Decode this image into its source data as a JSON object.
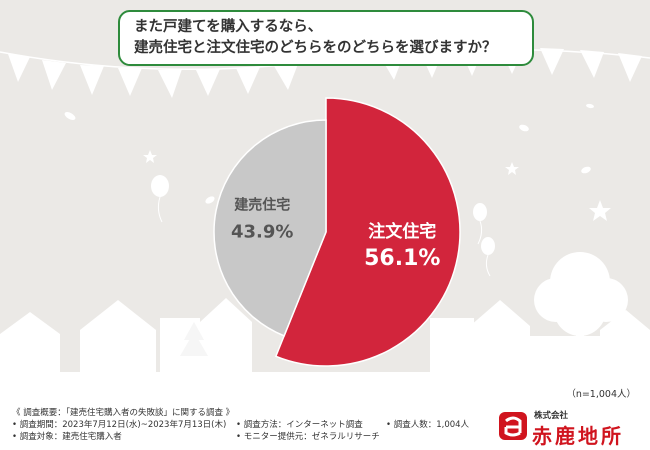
{
  "title": {
    "line1": "また戸建てを購入するなら、",
    "line2": "建売住宅と注文住宅のどちらをのどちらを選びますか？"
  },
  "chart_data": {
    "type": "pie",
    "title": "また戸建てを購入するなら、建売住宅と注文住宅のどちらをのどちらを選びますか？",
    "slices": [
      {
        "label": "注文住宅",
        "value": 56.1,
        "display": "56.1%",
        "color": "#d2253c"
      },
      {
        "label": "建売住宅",
        "value": 43.9,
        "display": "43.9%",
        "color": "#c8c8c8"
      }
    ],
    "start": "top",
    "direction": "clockwise"
  },
  "sample_note": "（n=1,004人）",
  "footer": {
    "overview": "《 調査概要：「建売住宅購入者の失敗談」に関する調査 》",
    "period": "• 調査期間：2023年7月12日(水)~2023年7月13日(木)",
    "target": "• 調査対象：建売住宅購入者",
    "method": "• 調査方法：インターネット調査",
    "provider": "• モニター提供元：ゼネラルリサーチ",
    "count": "• 調査人数：1,004人"
  },
  "logo": {
    "small": "株式会社",
    "main": "赤鹿地所",
    "color": "#d0141e"
  },
  "colors": {
    "background": "#ebe9e6",
    "title_border": "#2e8b3c",
    "accent": "#d2253c",
    "neutral": "#c8c8c8"
  }
}
